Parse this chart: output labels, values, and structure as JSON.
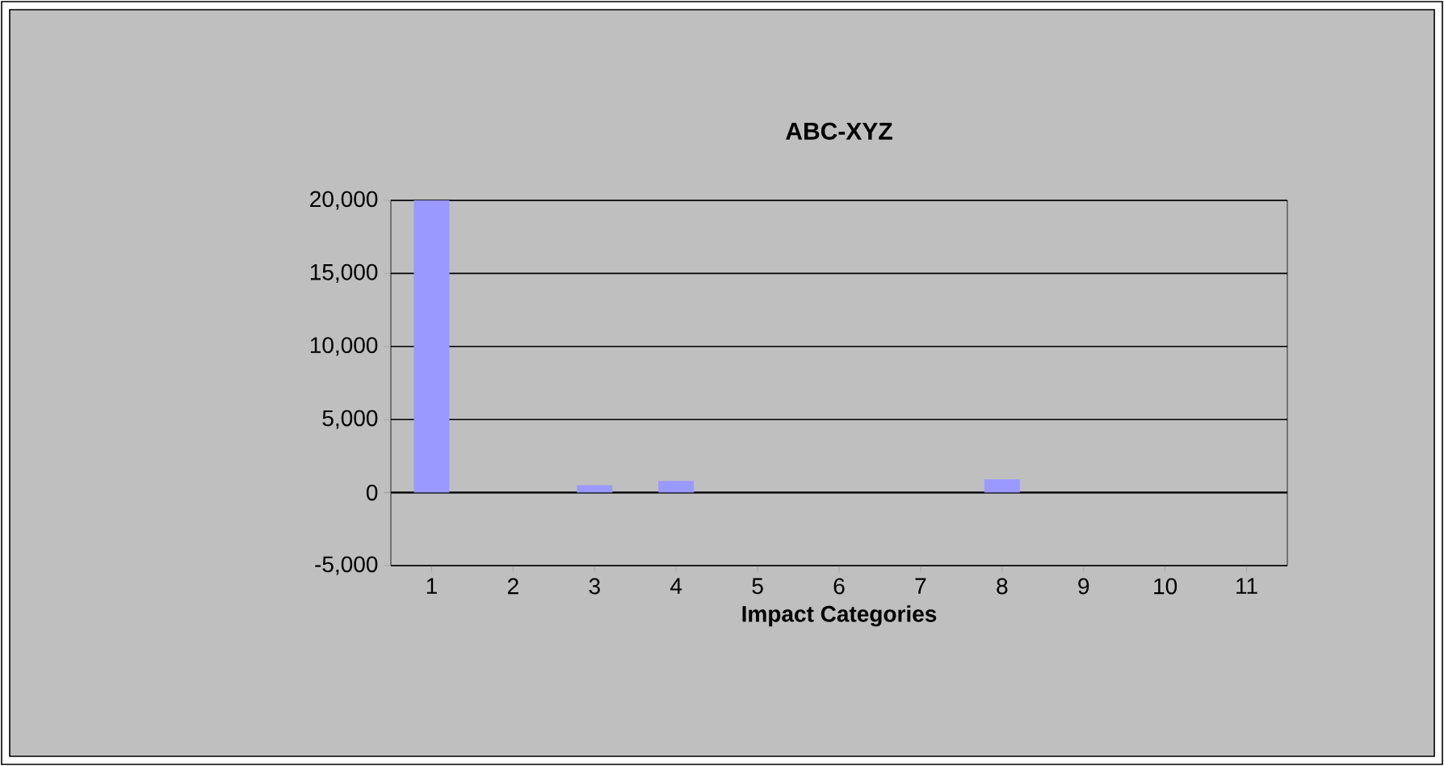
{
  "chart_data": {
    "type": "bar",
    "title": "ABC-XYZ",
    "xlabel": "Impact Categories",
    "categories": [
      "1",
      "2",
      "3",
      "4",
      "5",
      "6",
      "7",
      "8",
      "9",
      "10",
      "11"
    ],
    "values": [
      20000,
      0,
      500,
      800,
      0,
      0,
      0,
      900,
      0,
      0,
      0
    ],
    "color": "#9999ff",
    "ylim": [
      -5000,
      20000
    ],
    "yticks": [
      {
        "value": -5000,
        "label": "-5,000"
      },
      0,
      {
        "value": 5000,
        "label": "5,000"
      },
      {
        "value": 10000,
        "label": "10,000"
      },
      {
        "value": 15000,
        "label": "15,000"
      },
      {
        "value": 20000,
        "label": "20,000"
      }
    ],
    "grid": "y"
  }
}
